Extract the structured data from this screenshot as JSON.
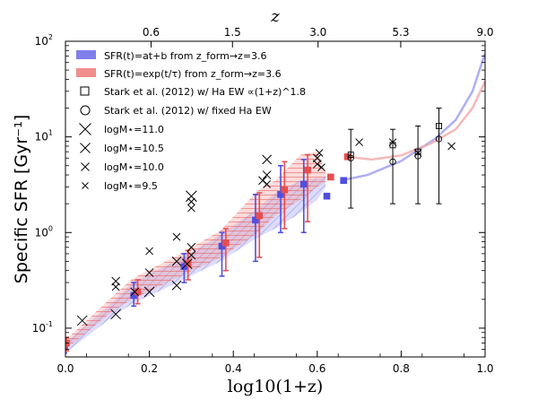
{
  "chart_data": {
    "type": "scatter",
    "title": "",
    "xlabel": "log10(1+z)",
    "ylabel": "Specific SFR [Gyr⁻¹]",
    "top_axis_label": "z",
    "xlim": [
      0.0,
      1.0
    ],
    "ylim": [
      0.05,
      100
    ],
    "yscale": "log",
    "x_ticks": [
      {
        "v": 0.0,
        "label": "0.0"
      },
      {
        "v": 0.2,
        "label": "0.2"
      },
      {
        "v": 0.4,
        "label": "0.4"
      },
      {
        "v": 0.6,
        "label": "0.6"
      },
      {
        "v": 0.8,
        "label": "0.8"
      },
      {
        "v": 1.0,
        "label": "1.0"
      }
    ],
    "y_ticks": [
      {
        "v": 0.1,
        "base": "10",
        "exp": "-1"
      },
      {
        "v": 1,
        "base": "10",
        "exp": "0"
      },
      {
        "v": 10,
        "base": "10",
        "exp": "1"
      },
      {
        "v": 100,
        "base": "10",
        "exp": "2"
      }
    ],
    "top_ticks": [
      {
        "x": 0.204,
        "label": "0.6"
      },
      {
        "x": 0.398,
        "label": "1.5"
      },
      {
        "x": 0.602,
        "label": "3.0"
      },
      {
        "x": 0.799,
        "label": "5.3"
      },
      {
        "x": 1.0,
        "label": "9.0"
      }
    ],
    "legend": {
      "position": "top-left",
      "entries": [
        {
          "marker": "patch",
          "color": "#6a6ae8",
          "label": "SFR(t)=at+b from z_form→z=3.6"
        },
        {
          "marker": "patch",
          "color": "#f07a7a",
          "label": "SFR(t)=exp(t/τ) from z_form→z=3.6"
        },
        {
          "marker": "open-square",
          "label": "Stark et al. (2012) w/ Ha EW ∝(1+z)^1.8"
        },
        {
          "marker": "open-circle",
          "label": "Stark et al. (2012) w/ fixed Ha EW"
        },
        {
          "marker": "x",
          "size": 13,
          "label": "logM⋆=11.0"
        },
        {
          "marker": "x",
          "size": 11,
          "label": "logM⋆=10.5"
        },
        {
          "marker": "x",
          "size": 9,
          "label": "logM⋆=10.0"
        },
        {
          "marker": "x",
          "size": 7,
          "label": "logM⋆=9.5"
        }
      ]
    },
    "series": [
      {
        "name": "SFR(t)=at+b from z_form→z=3.6",
        "color": "#5a5ae0",
        "band_upper": [
          [
            0.0,
            0.07
          ],
          [
            0.12,
            0.2
          ],
          [
            0.16,
            0.3
          ],
          [
            0.28,
            0.55
          ],
          [
            0.37,
            0.95
          ],
          [
            0.46,
            1.8
          ],
          [
            0.5,
            2.6
          ],
          [
            0.56,
            3.5
          ],
          [
            0.6,
            3.7
          ],
          [
            0.62,
            3.8
          ]
        ],
        "band_lower": [
          [
            0.0,
            0.055
          ],
          [
            0.12,
            0.14
          ],
          [
            0.16,
            0.18
          ],
          [
            0.28,
            0.32
          ],
          [
            0.37,
            0.5
          ],
          [
            0.46,
            0.9
          ],
          [
            0.5,
            1.1
          ],
          [
            0.56,
            1.6
          ],
          [
            0.6,
            2.2
          ],
          [
            0.62,
            3.0
          ]
        ],
        "points": [
          {
            "x": 0.0,
            "y": 0.065,
            "lo": 0.055,
            "hi": 0.075
          },
          {
            "x": 0.165,
            "y": 0.22,
            "lo": 0.17,
            "hi": 0.3
          },
          {
            "x": 0.285,
            "y": 0.44,
            "lo": 0.3,
            "hi": 0.6
          },
          {
            "x": 0.375,
            "y": 0.72,
            "lo": 0.35,
            "hi": 1.0
          },
          {
            "x": 0.455,
            "y": 1.35,
            "lo": 0.5,
            "hi": 2.5
          },
          {
            "x": 0.515,
            "y": 2.5,
            "lo": 1.0,
            "hi": 5.0
          },
          {
            "x": 0.57,
            "y": 3.2,
            "lo": 1.0,
            "hi": 5.8
          },
          {
            "x": 0.625,
            "y": 2.4
          },
          {
            "x": 0.665,
            "y": 3.5
          }
        ],
        "trend": [
          [
            0.67,
            3.6
          ],
          [
            0.72,
            4.0
          ],
          [
            0.8,
            5.6
          ],
          [
            0.88,
            9.5
          ],
          [
            0.93,
            15
          ],
          [
            0.97,
            30
          ],
          [
            1.0,
            75
          ]
        ]
      },
      {
        "name": "SFR(t)=exp(t/τ) from z_form→z=3.6",
        "color": "#e85a5a",
        "band_upper": [
          [
            0.0,
            0.075
          ],
          [
            0.12,
            0.23
          ],
          [
            0.16,
            0.33
          ],
          [
            0.28,
            0.62
          ],
          [
            0.37,
            1.05
          ],
          [
            0.46,
            2.8
          ],
          [
            0.5,
            3.5
          ],
          [
            0.56,
            6.5
          ],
          [
            0.6,
            7.0
          ],
          [
            0.62,
            4.2
          ]
        ],
        "band_lower": [
          [
            0.0,
            0.06
          ],
          [
            0.12,
            0.16
          ],
          [
            0.16,
            0.2
          ],
          [
            0.28,
            0.36
          ],
          [
            0.37,
            0.55
          ],
          [
            0.46,
            1.0
          ],
          [
            0.5,
            1.5
          ],
          [
            0.56,
            2.2
          ],
          [
            0.6,
            3.0
          ],
          [
            0.62,
            3.4
          ]
        ],
        "points": [
          {
            "x": 0.0,
            "y": 0.07,
            "lo": 0.058,
            "hi": 0.08
          },
          {
            "x": 0.17,
            "y": 0.24,
            "lo": 0.18,
            "hi": 0.32
          },
          {
            "x": 0.29,
            "y": 0.48,
            "lo": 0.32,
            "hi": 0.65
          },
          {
            "x": 0.38,
            "y": 0.78,
            "lo": 0.4,
            "hi": 1.1
          },
          {
            "x": 0.46,
            "y": 1.5,
            "lo": 0.55,
            "hi": 2.6
          },
          {
            "x": 0.52,
            "y": 2.8,
            "lo": 1.1,
            "hi": 5.5
          },
          {
            "x": 0.575,
            "y": 4.5,
            "lo": 1.3,
            "hi": 6.5
          },
          {
            "x": 0.63,
            "y": 3.8
          },
          {
            "x": 0.67,
            "y": 6.2
          }
        ],
        "trend": [
          [
            0.67,
            6.2
          ],
          [
            0.73,
            5.8
          ],
          [
            0.8,
            6.4
          ],
          [
            0.87,
            8.5
          ],
          [
            0.93,
            12
          ],
          [
            0.97,
            20
          ],
          [
            1.0,
            38
          ]
        ]
      },
      {
        "name": "Stark et al. (2012) w/ Ha EW ∝(1+z)^1.8",
        "marker": "open-square",
        "points": [
          {
            "x": 0.68,
            "y": 6.5,
            "lo": 1.8,
            "hi": 12
          },
          {
            "x": 0.78,
            "y": 8.2,
            "lo": 2.0,
            "hi": 12
          },
          {
            "x": 0.84,
            "y": 7.0,
            "lo": 2.0,
            "hi": 13
          },
          {
            "x": 0.89,
            "y": 13,
            "lo": 2.0,
            "hi": 20
          }
        ]
      },
      {
        "name": "Stark et al. (2012) w/ fixed Ha EW",
        "marker": "open-circle",
        "points": [
          {
            "x": 0.68,
            "y": 6.0
          },
          {
            "x": 0.78,
            "y": 5.5
          },
          {
            "x": 0.84,
            "y": 6.3
          },
          {
            "x": 0.89,
            "y": 9.5
          }
        ]
      },
      {
        "name": "logM⋆ crosses",
        "marker": "x",
        "points": [
          {
            "x": 0.04,
            "y": 0.12,
            "s": 11
          },
          {
            "x": 0.12,
            "y": 0.14,
            "s": 11
          },
          {
            "x": 0.12,
            "y": 0.31,
            "s": 9
          },
          {
            "x": 0.12,
            "y": 0.27,
            "s": 8
          },
          {
            "x": 0.165,
            "y": 0.24,
            "s": 9
          },
          {
            "x": 0.2,
            "y": 0.24,
            "s": 11
          },
          {
            "x": 0.2,
            "y": 0.38,
            "s": 9
          },
          {
            "x": 0.2,
            "y": 0.64,
            "s": 8
          },
          {
            "x": 0.265,
            "y": 0.28,
            "s": 10
          },
          {
            "x": 0.265,
            "y": 0.5,
            "s": 10
          },
          {
            "x": 0.265,
            "y": 0.9,
            "s": 8
          },
          {
            "x": 0.29,
            "y": 0.47,
            "s": 11
          },
          {
            "x": 0.3,
            "y": 0.58,
            "s": 9
          },
          {
            "x": 0.3,
            "y": 0.7,
            "s": 9
          },
          {
            "x": 0.3,
            "y": 1.8,
            "s": 8
          },
          {
            "x": 0.3,
            "y": 2.1,
            "s": 8
          },
          {
            "x": 0.3,
            "y": 2.4,
            "s": 12
          },
          {
            "x": 0.47,
            "y": 3.5,
            "s": 9
          },
          {
            "x": 0.48,
            "y": 4.0,
            "s": 9
          },
          {
            "x": 0.48,
            "y": 5.8,
            "s": 10
          },
          {
            "x": 0.48,
            "y": 3.2,
            "s": 8
          },
          {
            "x": 0.6,
            "y": 5.2,
            "s": 9
          },
          {
            "x": 0.6,
            "y": 6.0,
            "s": 9
          },
          {
            "x": 0.605,
            "y": 6.8,
            "s": 8
          },
          {
            "x": 0.61,
            "y": 4.8,
            "s": 8
          },
          {
            "x": 0.7,
            "y": 8.8,
            "s": 8
          },
          {
            "x": 0.78,
            "y": 8.8,
            "s": 8
          },
          {
            "x": 0.84,
            "y": 6.8,
            "s": 8
          },
          {
            "x": 0.92,
            "y": 8.0,
            "s": 8
          }
        ]
      }
    ]
  }
}
